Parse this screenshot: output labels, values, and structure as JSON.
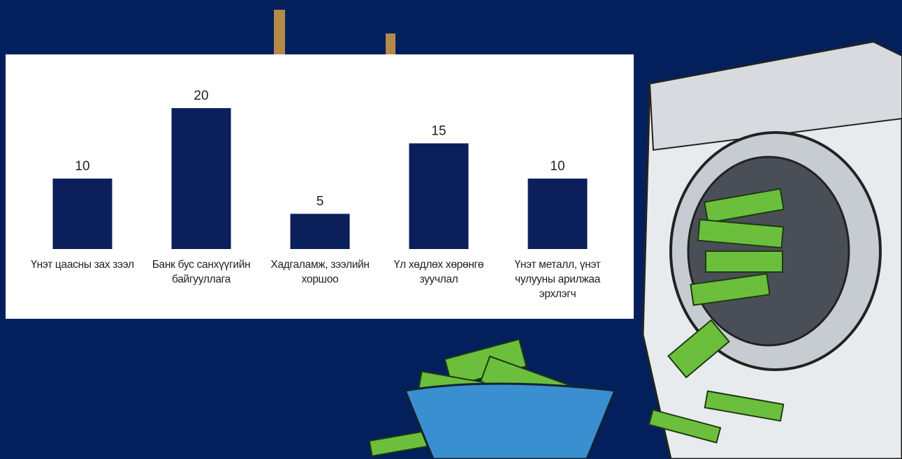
{
  "chart_data": {
    "type": "bar",
    "categories": [
      "Үнэт цаасны зах зээл",
      "Банк бус санхүүгийн байгууллага",
      "Хадгаламж, зээлийн хоршоо",
      "Үл хөдлөх хөрөнгө зуучлал",
      "Үнэт металл, үнэт чулууны арилжаа эрхлэгч"
    ],
    "values": [
      10,
      20,
      5,
      15,
      10
    ],
    "color": "#0b1f5a"
  }
}
